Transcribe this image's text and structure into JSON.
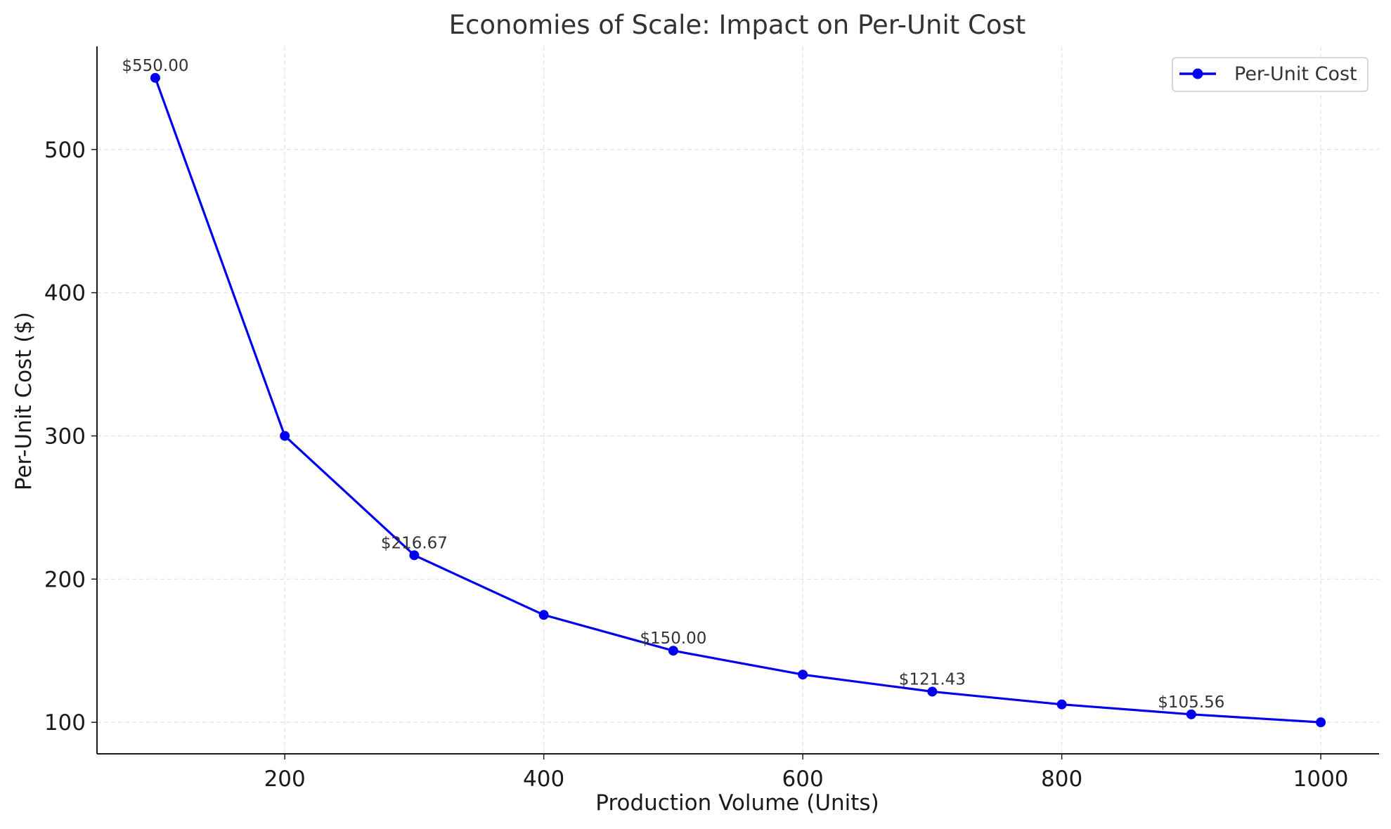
{
  "chart_data": {
    "type": "line",
    "title": "Economies of Scale: Impact on Per-Unit Cost",
    "xlabel": "Production Volume (Units)",
    "ylabel": "Per-Unit Cost ($)",
    "x": [
      100,
      200,
      300,
      400,
      500,
      600,
      700,
      800,
      900,
      1000
    ],
    "series": [
      {
        "name": "Per-Unit Cost",
        "color": "#0000ee",
        "values": [
          550.0,
          300.0,
          216.67,
          175.0,
          150.0,
          133.33,
          121.43,
          112.5,
          105.56,
          100.0
        ]
      }
    ],
    "data_labels": [
      {
        "x": 100,
        "y": 550.0,
        "text": "$550.00"
      },
      {
        "x": 300,
        "y": 216.67,
        "text": "$216.67"
      },
      {
        "x": 500,
        "y": 150.0,
        "text": "$150.00"
      },
      {
        "x": 700,
        "y": 121.43,
        "text": "$121.43"
      },
      {
        "x": 900,
        "y": 105.56,
        "text": "$105.56"
      }
    ],
    "xticks": [
      200,
      400,
      600,
      800,
      1000
    ],
    "yticks": [
      100,
      200,
      300,
      400,
      500
    ],
    "xlim": [
      55,
      1045
    ],
    "ylim": [
      78,
      572
    ],
    "grid": true,
    "legend": "top-right"
  }
}
